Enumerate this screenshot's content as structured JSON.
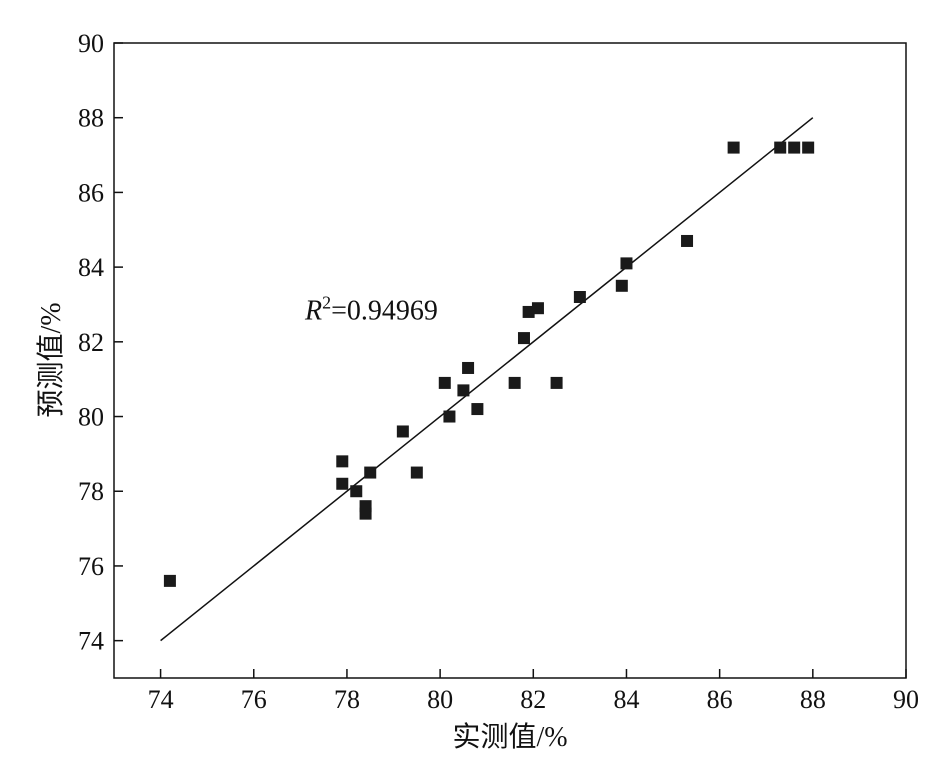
{
  "chart_data": {
    "type": "scatter",
    "xlabel": "实测值/%",
    "ylabel": "预测值/%",
    "xlim": [
      73,
      90
    ],
    "ylim": [
      73,
      90
    ],
    "xticks": [
      74,
      76,
      78,
      80,
      82,
      84,
      86,
      88,
      90
    ],
    "yticks": [
      74,
      76,
      78,
      80,
      82,
      84,
      86,
      88,
      90
    ],
    "grid": false,
    "marker": "square",
    "marker_color": "#1a1a1a",
    "annotation": {
      "r_symbol": "R",
      "superscript": "2",
      "value_text": "=0.94969",
      "position_data": [
        77.1,
        82.6
      ]
    },
    "fit_line": {
      "x": [
        74,
        88
      ],
      "y": [
        74,
        88
      ]
    },
    "points": [
      {
        "x": 74.2,
        "y": 75.6
      },
      {
        "x": 77.9,
        "y": 78.8
      },
      {
        "x": 77.9,
        "y": 78.2
      },
      {
        "x": 78.2,
        "y": 78.0
      },
      {
        "x": 78.4,
        "y": 77.6
      },
      {
        "x": 78.4,
        "y": 77.4
      },
      {
        "x": 78.5,
        "y": 78.5
      },
      {
        "x": 79.2,
        "y": 79.6
      },
      {
        "x": 79.5,
        "y": 78.5
      },
      {
        "x": 80.1,
        "y": 80.9
      },
      {
        "x": 80.2,
        "y": 80.0
      },
      {
        "x": 80.5,
        "y": 80.7
      },
      {
        "x": 80.6,
        "y": 81.3
      },
      {
        "x": 80.8,
        "y": 80.2
      },
      {
        "x": 81.6,
        "y": 80.9
      },
      {
        "x": 81.8,
        "y": 82.1
      },
      {
        "x": 81.9,
        "y": 82.8
      },
      {
        "x": 82.1,
        "y": 82.9
      },
      {
        "x": 82.5,
        "y": 80.9
      },
      {
        "x": 83.0,
        "y": 83.2
      },
      {
        "x": 83.9,
        "y": 83.5
      },
      {
        "x": 84.0,
        "y": 84.1
      },
      {
        "x": 85.3,
        "y": 84.7
      },
      {
        "x": 86.3,
        "y": 87.2
      },
      {
        "x": 87.3,
        "y": 87.2
      },
      {
        "x": 87.6,
        "y": 87.2
      },
      {
        "x": 87.9,
        "y": 87.2
      }
    ]
  }
}
